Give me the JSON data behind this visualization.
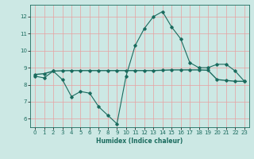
{
  "xlabel": "Humidex (Indice chaleur)",
  "bg_color": "#cce8e4",
  "grid_color": "#e8a0a0",
  "line_color": "#1a6b5e",
  "xlim": [
    -0.5,
    23.5
  ],
  "ylim": [
    5.5,
    12.7
  ],
  "xticks": [
    0,
    1,
    2,
    3,
    4,
    5,
    6,
    7,
    8,
    9,
    10,
    11,
    12,
    13,
    14,
    15,
    16,
    17,
    18,
    19,
    20,
    21,
    22,
    23
  ],
  "yticks": [
    6,
    7,
    8,
    9,
    10,
    11,
    12
  ],
  "line1_x": [
    0,
    1,
    2,
    3,
    4,
    5,
    6,
    7,
    8,
    9,
    10,
    11,
    12,
    13,
    14,
    15,
    16,
    17,
    18,
    19,
    20,
    21,
    22,
    23
  ],
  "line1_y": [
    8.5,
    8.4,
    8.8,
    8.3,
    7.3,
    7.6,
    7.5,
    6.7,
    6.2,
    5.7,
    8.5,
    10.3,
    11.3,
    12.0,
    12.3,
    11.4,
    10.7,
    9.3,
    9.0,
    9.0,
    9.2,
    9.2,
    8.8,
    8.2
  ],
  "line2_x": [
    0,
    1,
    2,
    3,
    4,
    5,
    6,
    7,
    8,
    9,
    10,
    11,
    12,
    13,
    14,
    15,
    16,
    17,
    18,
    19,
    20,
    21,
    22,
    23
  ],
  "line2_y": [
    8.6,
    8.65,
    8.8,
    8.82,
    8.83,
    8.83,
    8.83,
    8.83,
    8.83,
    8.83,
    8.83,
    8.83,
    8.83,
    8.83,
    8.85,
    8.87,
    8.87,
    8.87,
    8.87,
    8.85,
    8.3,
    8.25,
    8.2,
    8.2
  ]
}
